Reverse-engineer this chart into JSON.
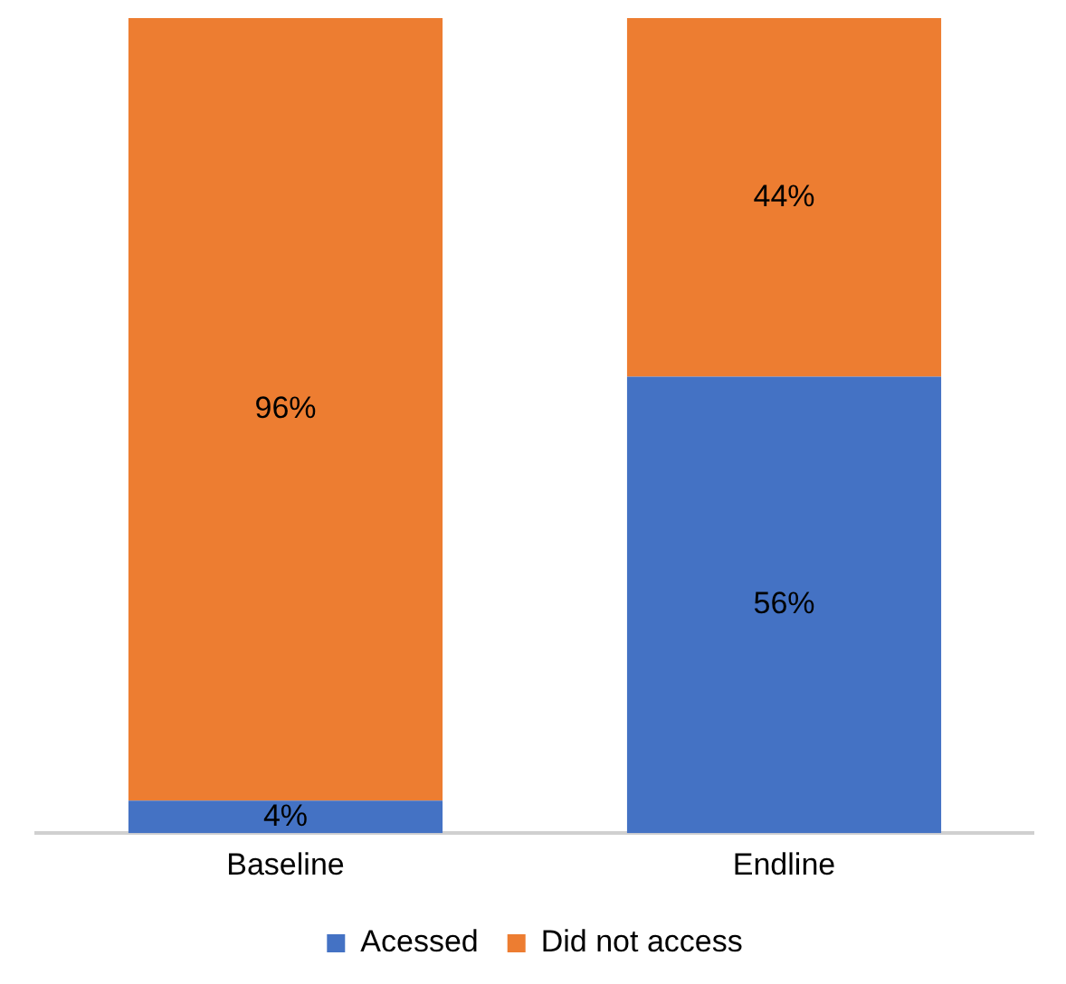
{
  "chart_data": {
    "type": "bar",
    "stacked": true,
    "categories": [
      "Baseline",
      "Endline"
    ],
    "series": [
      {
        "name": "Acessed",
        "color": "#4472c4",
        "values": [
          4,
          56
        ],
        "value_labels": [
          "4%",
          "56%"
        ]
      },
      {
        "name": "Did not access",
        "color": "#ed7d31",
        "values": [
          96,
          44
        ],
        "value_labels": [
          "96%",
          "44%"
        ]
      }
    ],
    "ylim": [
      0,
      100
    ],
    "tick_labels": "x",
    "grid": false,
    "legend": "bottom"
  }
}
